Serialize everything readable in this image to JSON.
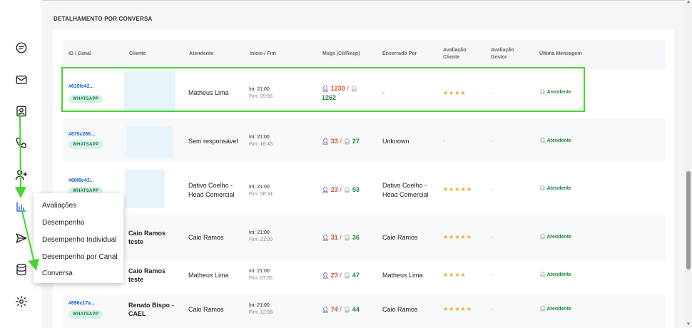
{
  "section_title": "DETALHAMENTO POR CONVERSA",
  "columns": [
    {
      "label": "ID / Canal"
    },
    {
      "label": "Cliente"
    },
    {
      "label": "Atendente"
    },
    {
      "label": "Início / Fim"
    },
    {
      "label": "Msgs (Cli/Resp)"
    },
    {
      "label": "Encerrado Por"
    },
    {
      "label": "Avaliação Cliente"
    },
    {
      "label": "Avaliação Gestor"
    },
    {
      "label": "Última Mensagem"
    }
  ],
  "rows": [
    {
      "id": "#619fe42...",
      "channel": "WHATSAPP",
      "client": "",
      "agent": "Matheus Lima",
      "ini": "Ini: 21:00",
      "fim": "Fim: 09:56",
      "cli": "1230",
      "resp": "1262",
      "ended_by": "-",
      "client_rating": "★★★★",
      "manager_rating": "-",
      "last_message": "Atendente"
    },
    {
      "id": "#675c266...",
      "channel": "WHATSAPP",
      "client": "",
      "agent": "Sem responsável",
      "ini": "Ini: 21:00",
      "fim": "Fim: 18:45",
      "cli": "33",
      "resp": "27",
      "ended_by": "Unknown",
      "client_rating": "-",
      "manager_rating": "-",
      "last_message": "Atendente"
    },
    {
      "id": "#68f8c43...",
      "channel": "WHATSAPP",
      "client": "",
      "agent": "Dativo Coelho - Head Comercial",
      "ini": "Ini: 21:00",
      "fim": "Fim: 08:34",
      "cli": "23",
      "resp": "53",
      "ended_by": "Dativo Coelho - Head Comercial",
      "client_rating": "★★★★★",
      "manager_rating": "-",
      "last_message": "Atendente"
    },
    {
      "id": "",
      "channel": "",
      "client": "Caio Ramos teste",
      "agent": "Caio Ramos",
      "ini": "Ini: 21:00",
      "fim": "Fim: 21:00",
      "cli": "31",
      "resp": "36",
      "ended_by": "Caio Ramos",
      "client_rating": "★★★★★",
      "manager_rating": "-",
      "last_message": "Atendente"
    },
    {
      "id": "",
      "channel": "",
      "client": "Caio Ramos teste",
      "agent": "Matheus Lima",
      "ini": "Ini: 21:00",
      "fim": "Fim: 07:35",
      "cli": "23",
      "resp": "47",
      "ended_by": "Matheus Lima",
      "client_rating": "★★★★",
      "manager_rating": "-",
      "last_message": "Atendente"
    },
    {
      "id": "#696c17a...",
      "channel": "WHATSAPP",
      "client": "Renato Bispo - CAEL",
      "agent": "Caio Ramos",
      "ini": "Ini: 21:00",
      "fim": "Fim: 12:08",
      "cli": "74",
      "resp": "44",
      "ended_by": "Caio Ramos",
      "client_rating": "★★★★★",
      "manager_rating": "-",
      "last_message": "Atendente"
    }
  ],
  "menu": {
    "items": [
      "Avaliações",
      "Desempenho",
      "Desempenho Individual",
      "Desempenho por Canal",
      "Conversa"
    ]
  },
  "sidebar_icons": [
    "chat-icon",
    "mail-icon",
    "contact-card-icon",
    "phone-icon",
    "user-add-icon",
    "bar-chart-icon",
    "send-icon",
    "database-icon",
    "gear-icon"
  ],
  "colors": {
    "highlight": "#44d62c",
    "link": "#1e62d8",
    "badge_bg": "#d6f2e4",
    "badge_text": "#0e7a4a",
    "cli_count": "#e0521b",
    "resp_count": "#1c8a3a",
    "stars": "#f2a51a"
  }
}
